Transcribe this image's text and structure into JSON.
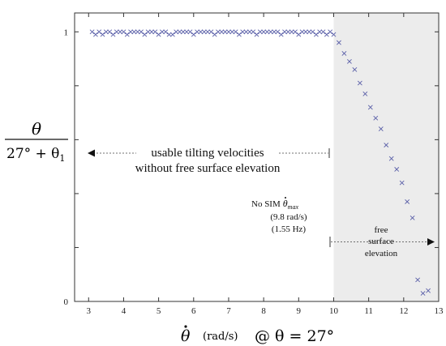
{
  "chart_data": {
    "type": "scatter",
    "x_ticks": [
      "3",
      "4",
      "5",
      "6",
      "7",
      "8",
      "9",
      "10",
      "11",
      "12",
      "13"
    ],
    "y_ticks": [
      "0",
      "1"
    ],
    "xlim": [
      2.6,
      13.0
    ],
    "ylim": [
      0,
      1.07
    ],
    "ylabel": {
      "numerator": "θ",
      "denominator": "27° + θ",
      "denominator_subscript": "1"
    },
    "xlabel": {
      "symbol": "θ",
      "units": "(rad/s)",
      "condition": "@ θ = 27°"
    },
    "shaded_region": {
      "x_start": 10.0,
      "x_end": 13.0,
      "color": "#ececec"
    },
    "marker": {
      "symbol": "x",
      "color": "#5a5fa8"
    },
    "annotations": {
      "usable_line1": "usable tilting velocities",
      "usable_line2": "without free surface elevation",
      "nosim_prefix": "No SIM",
      "nosim_symbol": "θ",
      "nosim_subscript": "max",
      "nosim_rads": "(9.8 rad/s)",
      "nosim_hz": "(1.55 Hz)",
      "free_line1": "free",
      "free_line2": "surface",
      "free_line3": "elevation"
    },
    "series": [
      {
        "x": [
          3.1,
          3.2,
          3.3,
          3.4,
          3.5,
          3.6,
          3.7,
          3.8,
          3.9,
          4.0,
          4.1,
          4.2,
          4.3,
          4.4,
          4.5,
          4.6,
          4.7,
          4.8,
          4.9,
          5.0,
          5.1,
          5.2,
          5.3,
          5.4,
          5.5,
          5.6,
          5.7,
          5.8,
          5.9,
          6.0,
          6.1,
          6.2,
          6.3,
          6.4,
          6.5,
          6.6,
          6.7,
          6.8,
          6.9,
          7.0,
          7.1,
          7.2,
          7.3,
          7.4,
          7.5,
          7.6,
          7.7,
          7.8,
          7.9,
          8.0,
          8.1,
          8.2,
          8.3,
          8.4,
          8.5,
          8.6,
          8.7,
          8.8,
          8.9,
          9.0,
          9.1,
          9.2,
          9.3,
          9.4,
          9.5,
          9.6,
          9.7,
          9.8,
          9.9,
          10.0,
          10.15,
          10.3,
          10.45,
          10.6,
          10.75,
          10.9,
          11.05,
          11.2,
          11.35,
          11.5,
          11.65,
          11.8,
          11.95,
          12.1,
          12.25,
          12.4,
          12.55,
          12.7
        ],
        "y": [
          1.0,
          0.99,
          1.0,
          0.99,
          1.0,
          1.0,
          0.99,
          1.0,
          1.0,
          1.0,
          0.99,
          1.0,
          1.0,
          1.0,
          1.0,
          0.99,
          1.0,
          1.0,
          1.0,
          0.99,
          1.0,
          1.0,
          0.99,
          0.99,
          1.0,
          1.0,
          1.0,
          1.0,
          1.0,
          0.99,
          1.0,
          1.0,
          1.0,
          1.0,
          1.0,
          0.99,
          1.0,
          1.0,
          1.0,
          1.0,
          1.0,
          1.0,
          0.99,
          1.0,
          1.0,
          1.0,
          1.0,
          0.99,
          1.0,
          1.0,
          1.0,
          1.0,
          1.0,
          1.0,
          0.99,
          1.0,
          1.0,
          1.0,
          1.0,
          0.99,
          1.0,
          1.0,
          1.0,
          1.0,
          0.99,
          1.0,
          1.0,
          0.99,
          1.0,
          0.99,
          0.96,
          0.92,
          0.89,
          0.86,
          0.81,
          0.77,
          0.72,
          0.68,
          0.64,
          0.58,
          0.53,
          0.49,
          0.44,
          0.37,
          0.31,
          0.08,
          0.03,
          0.04
        ]
      }
    ]
  }
}
